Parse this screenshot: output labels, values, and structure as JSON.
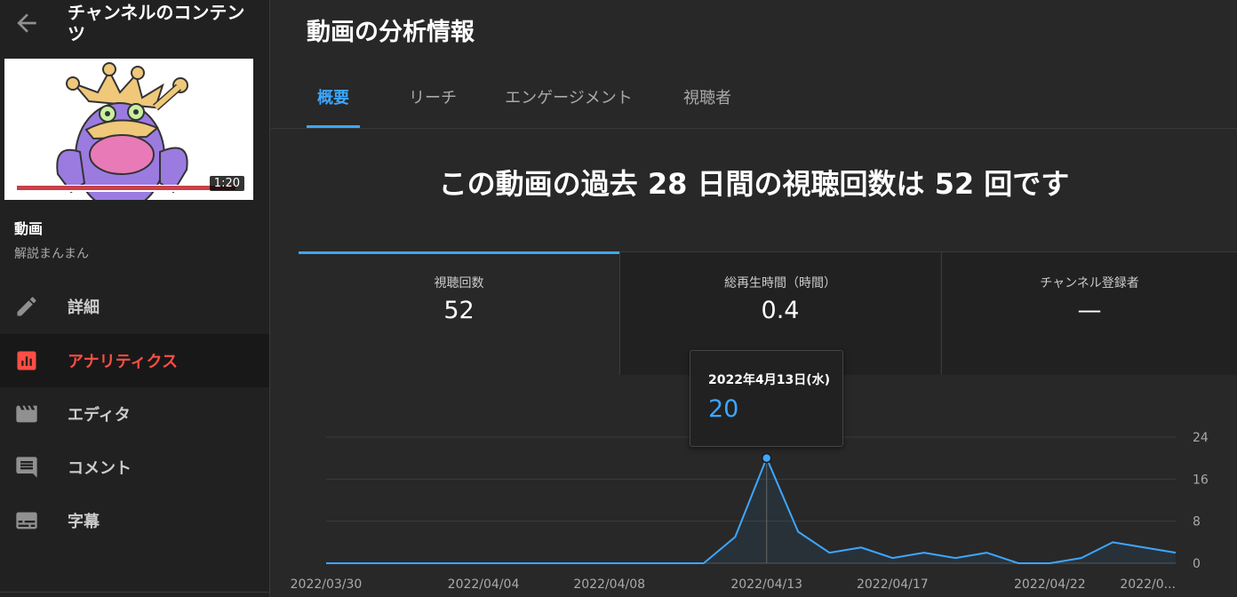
{
  "sidebar": {
    "title": "チャンネルのコンテンツ",
    "thumbnail": {
      "duration": "1:20"
    },
    "video_label": "動画",
    "video_sub": "解説まんまん",
    "nav": [
      {
        "label": "詳細",
        "icon": "pencil-icon"
      },
      {
        "label": "アナリティクス",
        "icon": "analytics-icon",
        "active": true
      },
      {
        "label": "エディタ",
        "icon": "clapperboard-icon"
      },
      {
        "label": "コメント",
        "icon": "comment-icon"
      },
      {
        "label": "字幕",
        "icon": "subtitles-icon"
      }
    ]
  },
  "main": {
    "title": "動画の分析情報",
    "tabs": [
      {
        "label": "概要",
        "active": true
      },
      {
        "label": "リーチ"
      },
      {
        "label": "エンゲージメント"
      },
      {
        "label": "視聴者"
      }
    ],
    "headline": "この動画の過去 28 日間の視聴回数は 52 回です",
    "cards": [
      {
        "label": "視聴回数",
        "value": "52",
        "active": true
      },
      {
        "label": "総再生時間（時間）",
        "value": "0.4"
      },
      {
        "label": "チャンネル登録者",
        "value": "—"
      }
    ],
    "tooltip": {
      "date": "2022年4月13日(水)",
      "value": "20"
    }
  },
  "colors": {
    "accent": "#3ea6ff",
    "active_nav": "#ff4e45",
    "line": "#3ea6ff"
  },
  "chart_data": {
    "type": "area",
    "x": [
      "2022/03/30",
      "2022/03/31",
      "2022/04/01",
      "2022/04/02",
      "2022/04/03",
      "2022/04/04",
      "2022/04/05",
      "2022/04/06",
      "2022/04/07",
      "2022/04/08",
      "2022/04/09",
      "2022/04/10",
      "2022/04/11",
      "2022/04/12",
      "2022/04/13",
      "2022/04/14",
      "2022/04/15",
      "2022/04/16",
      "2022/04/17",
      "2022/04/18",
      "2022/04/19",
      "2022/04/20",
      "2022/04/21",
      "2022/04/22",
      "2022/04/23",
      "2022/04/24",
      "2022/04/25",
      "2022/04/26"
    ],
    "values": [
      0,
      0,
      0,
      0,
      0,
      0,
      0,
      0,
      0,
      0,
      0,
      0,
      0,
      5,
      20,
      6,
      2,
      3,
      1,
      2,
      1,
      2,
      0,
      0,
      1,
      4,
      3,
      2
    ],
    "highlight_index": 14,
    "x_tick_labels": [
      {
        "index": 0,
        "label": "2022/03/30"
      },
      {
        "index": 5,
        "label": "2022/04/04"
      },
      {
        "index": 9,
        "label": "2022/04/08"
      },
      {
        "index": 14,
        "label": "2022/04/13"
      },
      {
        "index": 18,
        "label": "2022/04/17"
      },
      {
        "index": 23,
        "label": "2022/04/22"
      },
      {
        "index": 27,
        "label": "2022/0..."
      }
    ],
    "y_ticks": [
      0,
      8,
      16,
      24
    ],
    "ylim": [
      0,
      24
    ],
    "grid": true
  }
}
